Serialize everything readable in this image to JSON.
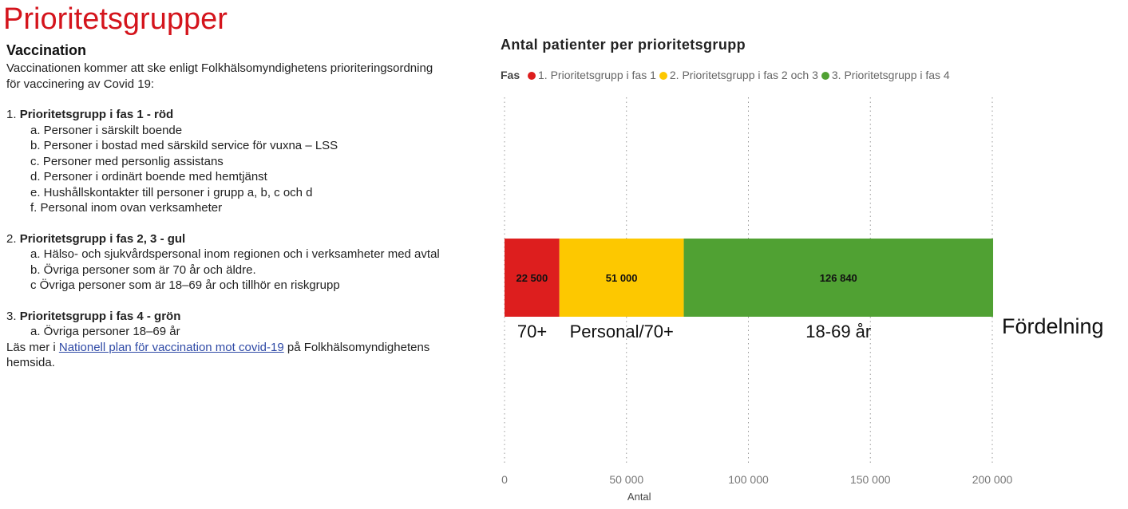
{
  "page_title": "Prioritetsgrupper",
  "vaccination": {
    "heading": "Vaccination",
    "intro_line1": "Vaccinationen kommer att ske enligt Folkhälsomyndighetens prioriteringsordning",
    "intro_line2": "för vaccinering av Covid 19:",
    "groups": [
      {
        "number": "1.",
        "title": "Prioritetsgrupp i fas 1 - röd",
        "items": [
          "a. Personer i särskilt boende",
          "b. Personer i bostad med särskild service för vuxna – LSS",
          "c. Personer med personlig assistans",
          "d. Personer i ordinärt boende med hemtjänst",
          "e. Hushållskontakter till personer i grupp a, b, c och d",
          "f.  Personal inom ovan verksamheter"
        ]
      },
      {
        "number": "2.",
        "title": "Prioritetsgrupp i fas 2, 3 - gul",
        "items": [
          "a. Hälso- och sjukvårdspersonal inom regionen och i verksamheter med avtal",
          "b. Övriga personer som är 70 år och äldre.",
          "c  Övriga personer som är 18–69 år och tillhör en riskgrupp"
        ]
      },
      {
        "number": "3.",
        "title": "Prioritetsgrupp i fas 4  - grön",
        "items": [
          "a. Övriga personer 18–69 år"
        ]
      }
    ],
    "more_prefix": "Läs mer i ",
    "more_link": "Nationell plan för vaccination mot covid-19",
    "more_suffix": " på Folkhälsomyndighetens",
    "more_line2": "hemsida."
  },
  "chart_data": {
    "type": "bar",
    "orientation": "horizontal-stacked",
    "title": "Antal patienter per prioritetsgrupp",
    "legend_title": "Fas",
    "legend_position": "top-left",
    "series": [
      {
        "name": "1. Prioritetsgrupp i fas 1",
        "value": 22500,
        "data_label": "22 500",
        "color": "#dd1e1e",
        "category_label": "70+"
      },
      {
        "name": "2. Prioritetsgrupp i fas 2 och 3",
        "value": 51000,
        "data_label": "51 000",
        "color": "#fdc800",
        "category_label": "Personal/70+"
      },
      {
        "name": "3. Prioritetsgrupp i fas 4",
        "value": 126840,
        "data_label": "126 840",
        "color": "#50a133",
        "category_label": "18-69 år"
      }
    ],
    "xlabel": "Antal",
    "xlim": [
      0,
      200000
    ],
    "xticks": [
      0,
      50000,
      100000,
      150000,
      200000
    ],
    "xtick_labels": [
      "0",
      "50 000",
      "100 000",
      "150 000",
      "200 000"
    ],
    "grid": "vertical dotted",
    "annotation": "Fördelning"
  }
}
